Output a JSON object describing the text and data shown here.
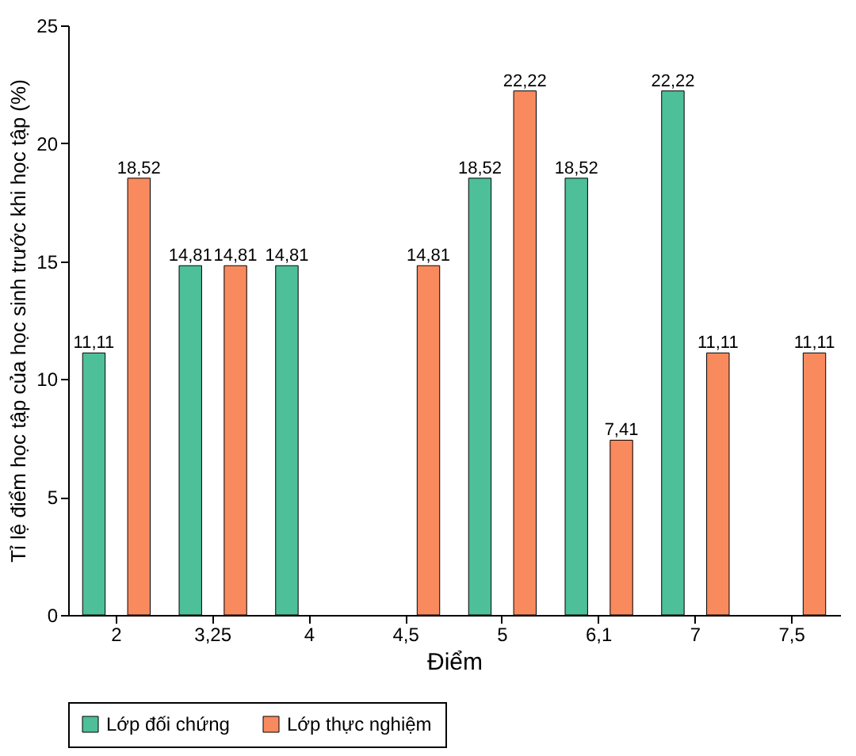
{
  "chart_data": {
    "type": "bar",
    "xlabel": "Điểm",
    "ylabel": "Tỉ lệ điểm học tập của học sinh trước khi học tập (%)",
    "categories": [
      "2",
      "3,25",
      "4",
      "4,5",
      "5",
      "6,1",
      "7",
      "7,5"
    ],
    "series": [
      {
        "name": "Lớp đối chứng",
        "color": "#4dbf99",
        "values": [
          11.11,
          14.81,
          14.81,
          null,
          18.52,
          18.52,
          22.22,
          null
        ],
        "value_labels": [
          "11,11",
          "14,81",
          "14,81",
          null,
          "18,52",
          "18,52",
          "22,22",
          null
        ]
      },
      {
        "name": "Lớp thực nghiệm",
        "color": "#f98a5e",
        "values": [
          18.52,
          14.81,
          null,
          14.81,
          22.22,
          7.41,
          11.11,
          11.11
        ],
        "value_labels": [
          "18,52",
          "14,81",
          null,
          "14,81",
          "22,22",
          "7,41",
          "11,11",
          "11,11"
        ]
      }
    ],
    "ylim": [
      0,
      25
    ],
    "yticks": [
      0,
      5,
      10,
      15,
      20,
      25
    ],
    "grid": false,
    "legend": "bottom"
  }
}
